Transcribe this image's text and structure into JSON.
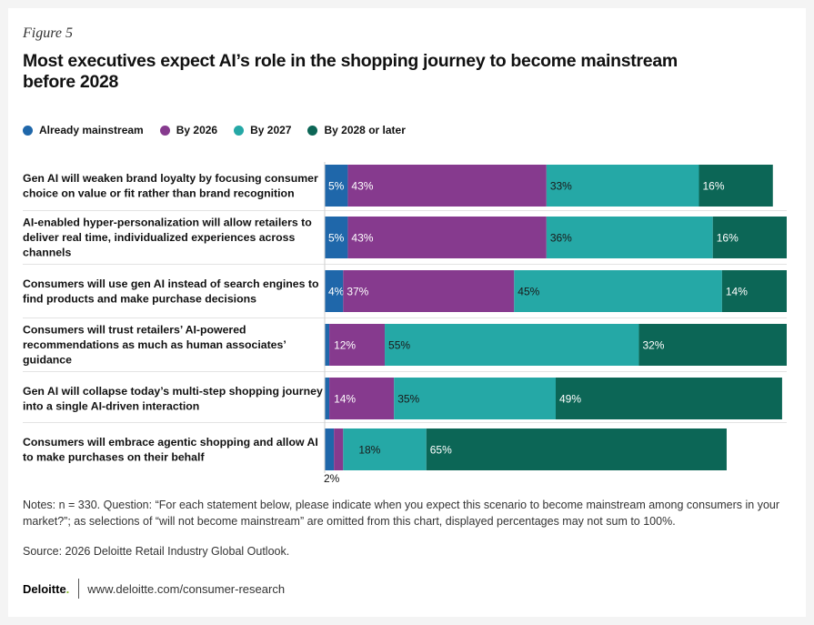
{
  "figure_label": "Figure 5",
  "chart_data": {
    "type": "bar",
    "orientation": "horizontal",
    "stacked": true,
    "title": "Most executives expect AI’s role in the shopping journey to become mainstream before 2028",
    "categories": [
      "Gen AI will weaken brand loyalty by focusing consumer choice on value or fit rather than brand recognition",
      "AI-enabled hyper-personalization will allow retailers to deliver real time, individualized experiences across channels",
      "Consumers will use gen AI instead of search engines to find products and make purchase decisions",
      "Consumers will trust retailers’ AI-powered recommendations as much as human associates’ guidance",
      "Gen AI will collapse today’s multi-step shopping journey into a single AI-driven interaction",
      "Consumers will embrace agentic shopping and allow AI to make purchases on their behalf"
    ],
    "category_lines": [
      [
        "Gen AI will weaken brand loyalty by focusing consumer",
        "choice on value or fit rather than brand recognition"
      ],
      [
        "AI-enabled hyper-personalization will allow retailers to",
        "deliver real time, individualized experiences across",
        "channels"
      ],
      [
        "Consumers will use gen AI instead of search engines to",
        "find products and make purchase decisions"
      ],
      [
        "Consumers will trust retailers’ AI-powered",
        "recommendations as much as human associates’",
        "guidance"
      ],
      [
        "Gen AI will collapse today’s multi-step shopping journey",
        "into a single AI-driven interaction"
      ],
      [
        "Consumers will embrace agentic shopping and allow AI",
        "to make purchases on their behalf"
      ]
    ],
    "series": [
      {
        "name": "Already mainstream",
        "color": "#1f67aa",
        "values": [
          5,
          5,
          4,
          1,
          1,
          2
        ]
      },
      {
        "name": "By 2026",
        "color": "#863a8e",
        "values": [
          43,
          43,
          37,
          12,
          14,
          2
        ]
      },
      {
        "name": "By 2027",
        "color": "#25a8a6",
        "values": [
          33,
          36,
          45,
          55,
          35,
          18
        ]
      },
      {
        "name": "By 2028 or later",
        "color": "#0c6656",
        "values": [
          16,
          16,
          14,
          32,
          49,
          65
        ]
      }
    ],
    "labels": [
      [
        "5%",
        "43%",
        "33%",
        "16%"
      ],
      [
        "5%",
        "43%",
        "36%",
        "16%"
      ],
      [
        "4%",
        "37%",
        "45%",
        "14%"
      ],
      [
        "",
        "12%",
        "55%",
        "32%"
      ],
      [
        "",
        "14%",
        "35%",
        "49%"
      ],
      [
        "",
        "2%",
        "18%",
        "65%"
      ]
    ],
    "xlim": [
      0,
      100
    ]
  },
  "notes": "Notes: n = 330. Question: “For each statement below, please indicate when you expect this scenario to become mainstream among consumers in your market?”; as selections of “will not become mainstream” are omitted from this chart, displayed percentages may not sum to 100%.",
  "source": "Source: 2026 Deloitte Retail Industry Global Outlook.",
  "footer": {
    "brand": "Deloitte",
    "brand_dot": ".",
    "url": "www.deloitte.com/consumer-research"
  }
}
